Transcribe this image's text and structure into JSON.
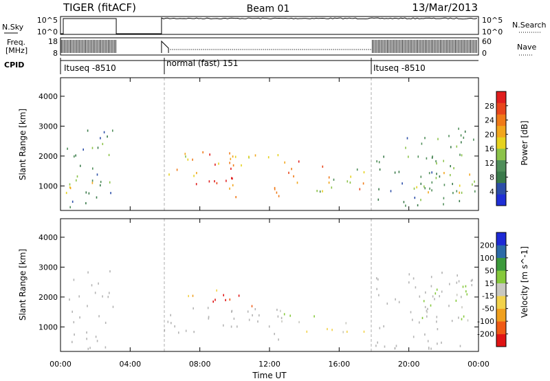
{
  "header": {
    "title": "TIGER (fitACF)",
    "beam": "Beam 01",
    "date": "13/Mar/2013"
  },
  "panels": {
    "nsky": {
      "left_label": "N.Sky",
      "right_label": "N.Search",
      "left_ticks": [
        "10^5",
        "10^0"
      ],
      "right_ticks": [
        "10^5",
        "10^0"
      ]
    },
    "freq": {
      "left_label_line1": "Freq.",
      "left_label_line2": "[MHz]",
      "right_label": "Nave",
      "left_ticks": [
        "18",
        "8"
      ],
      "right_ticks": [
        "60",
        "0"
      ]
    },
    "cpid": {
      "label": "CPID",
      "segments": [
        {
          "text": "Ituseq -8510"
        },
        {
          "text": "normal (fast) 151"
        },
        {
          "text": "Ituseq -8510"
        }
      ]
    }
  },
  "colors": {
    "power": [
      "#1f2fd6",
      "#2c4ea8",
      "#3a7a4a",
      "#4f8e59",
      "#8cc34a",
      "#e6d21e",
      "#f2a61c",
      "#f07a18",
      "#e8461c",
      "#e01e1e"
    ],
    "velocity": [
      "#e01414",
      "#f05a14",
      "#f0a01e",
      "#f2d24a",
      "#c8c8c0",
      "#86c93c",
      "#3c9a3c",
      "#2c6aa8",
      "#1e2ad6"
    ],
    "ground_scatter": "#b4b4b4"
  },
  "chart_data": [
    {
      "type": "heatmap",
      "title": "Power",
      "xlabel": "Time UT",
      "ylabel": "Slant Range [km]",
      "x_ticks": [
        "00:00",
        "04:00",
        "08:00",
        "12:00",
        "16:00",
        "20:00",
        "00:00"
      ],
      "xlim_hours": [
        0,
        24
      ],
      "ylim_km": [
        180,
        4620
      ],
      "y_ticks": [
        1000,
        2000,
        3000,
        4000
      ],
      "colorbar_label": "Power [dB]",
      "colorbar_ticks": [
        "4",
        "8",
        "12",
        "16",
        "20",
        "24",
        "28"
      ],
      "colorbar_range": [
        0,
        30
      ],
      "regions": [
        {
          "t": [
            0.3,
            3.0
          ],
          "r": [
            300,
            2900
          ],
          "level": 0.3
        },
        {
          "t": [
            0.3,
            3.0
          ],
          "r": [
            800,
            1500
          ],
          "level": 0.55
        },
        {
          "t": [
            5.9,
            10.5
          ],
          "r": [
            900,
            1300
          ],
          "level": 0.92
        },
        {
          "t": [
            6.2,
            10.2
          ],
          "r": [
            1300,
            2200
          ],
          "level": 0.6
        },
        {
          "t": [
            8.5,
            10.5
          ],
          "r": [
            1600,
            2300
          ],
          "level": 0.9
        },
        {
          "t": [
            10.0,
            13.5
          ],
          "r": [
            1700,
            2200
          ],
          "level": 0.5
        },
        {
          "t": [
            9.5,
            13.0
          ],
          "r": [
            600,
            1100
          ],
          "level": 0.65
        },
        {
          "t": [
            13.0,
            15.5
          ],
          "r": [
            1100,
            1900
          ],
          "level": 0.8
        },
        {
          "t": [
            14.5,
            17.5
          ],
          "r": [
            800,
            1700
          ],
          "level": 0.45
        },
        {
          "t": [
            16.0,
            17.5
          ],
          "r": [
            800,
            1200
          ],
          "level": 0.85
        },
        {
          "t": [
            18.0,
            23.8
          ],
          "r": [
            300,
            3000
          ],
          "level": 0.3
        },
        {
          "t": [
            20.0,
            23.8
          ],
          "r": [
            800,
            1600
          ],
          "level": 0.55
        }
      ]
    },
    {
      "type": "heatmap",
      "title": "Velocity",
      "xlabel": "Time UT",
      "ylabel": "Slant Range [km]",
      "x_ticks": [
        "00:00",
        "04:00",
        "08:00",
        "12:00",
        "16:00",
        "20:00",
        "00:00"
      ],
      "xlim_hours": [
        0,
        24
      ],
      "ylim_km": [
        180,
        4620
      ],
      "y_ticks": [
        1000,
        2000,
        3000,
        4000
      ],
      "colorbar_label": "Velocity [m s^-1]",
      "colorbar_ticks": [
        "-200",
        "-100",
        "-50",
        "-15",
        "15",
        "50",
        "100",
        "200"
      ],
      "colorbar_range": [
        -250,
        250
      ],
      "regions": [
        {
          "t": [
            0.3,
            3.0
          ],
          "r": [
            300,
            2900
          ],
          "velocity": 0,
          "gs": true
        },
        {
          "t": [
            5.9,
            13.0
          ],
          "r": [
            600,
            1700
          ],
          "velocity": 0,
          "gs": true
        },
        {
          "t": [
            8.5,
            11.5
          ],
          "r": [
            1700,
            2300
          ],
          "velocity": -190
        },
        {
          "t": [
            7.0,
            9.0
          ],
          "r": [
            1900,
            2300
          ],
          "velocity": -80
        },
        {
          "t": [
            12.5,
            15.5
          ],
          "r": [
            1100,
            1600
          ],
          "velocity": 40
        },
        {
          "t": [
            14.0,
            17.5
          ],
          "r": [
            800,
            1300
          ],
          "velocity": -30
        },
        {
          "t": [
            18.0,
            23.8
          ],
          "r": [
            300,
            2900
          ],
          "velocity": 0,
          "gs": true
        },
        {
          "t": [
            20.5,
            23.5
          ],
          "r": [
            1200,
            2600
          ],
          "velocity": 35
        }
      ]
    }
  ]
}
